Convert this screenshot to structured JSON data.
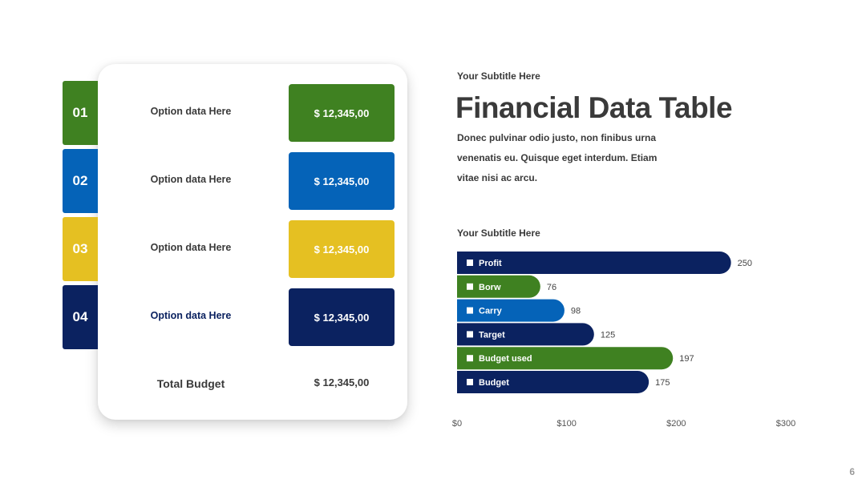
{
  "table": {
    "rows": [
      {
        "num": "01",
        "label": "Option data Here",
        "amount": "$ 12,345,00",
        "color": "#3f8121"
      },
      {
        "num": "02",
        "label": "Option data Here",
        "amount": "$ 12,345,00",
        "color": "#0563b8"
      },
      {
        "num": "03",
        "label": "Option data Here",
        "amount": "$ 12,345,00",
        "color": "#e5c022"
      },
      {
        "num": "04",
        "label": "Option data Here",
        "amount": "$ 12,345,00",
        "color": "#0b2260",
        "label_color": "#0b2260"
      }
    ],
    "total_label": "Total Budget",
    "total_amount": "$ 12,345,00"
  },
  "header": {
    "subtitle": "Your Subtitle Here",
    "title": "Financial Data Table",
    "body": "Donec pulvinar odio justo, non finibus urna venenatis eu. Quisque eget interdum. Etiam vitae nisi ac arcu."
  },
  "chart_subtitle": "Your Subtitle Here",
  "page_number": "6",
  "chart_data": {
    "type": "bar",
    "orientation": "horizontal",
    "categories": [
      "Profit",
      "Borw",
      "Carry",
      "Target",
      "Budget used",
      "Budget"
    ],
    "values": [
      250,
      76,
      98,
      125,
      197,
      175
    ],
    "colors": [
      "#0b2260",
      "#3f8121",
      "#0563b8",
      "#0b2260",
      "#3f8121",
      "#0b2260"
    ],
    "xlim": [
      0,
      300
    ],
    "xticks": [
      "$0",
      "$100",
      "$200",
      "$300"
    ],
    "title": "",
    "xlabel": "",
    "ylabel": "",
    "grid": false
  }
}
